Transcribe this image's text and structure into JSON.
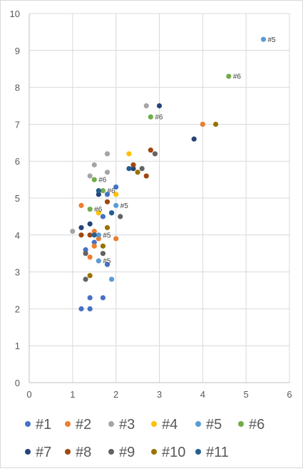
{
  "chart_data": {
    "type": "scatter",
    "xlim": [
      0,
      6
    ],
    "ylim": [
      0,
      10
    ],
    "x_ticks": [
      "0",
      "1",
      "2",
      "3",
      "4",
      "5",
      "6"
    ],
    "y_ticks": [
      "0",
      "1",
      "2",
      "3",
      "4",
      "5",
      "6",
      "7",
      "8",
      "9",
      "10"
    ],
    "grid": true,
    "legend_position": "bottom",
    "series": [
      {
        "name": "#1",
        "color": "#4472c4",
        "points": [
          [
            1.2,
            2.0
          ],
          [
            1.4,
            2.0
          ],
          [
            1.4,
            2.3
          ],
          [
            1.7,
            2.3
          ],
          [
            1.8,
            3.2
          ],
          [
            1.3,
            3.6
          ],
          [
            1.5,
            3.8
          ],
          [
            1.7,
            4.5
          ],
          [
            1.9,
            4.6
          ],
          [
            1.8,
            5.1
          ],
          [
            2.0,
            5.3
          ]
        ]
      },
      {
        "name": "#2",
        "color": "#ed7d31",
        "points": [
          [
            1.2,
            4.8
          ],
          [
            1.5,
            4.1
          ],
          [
            1.4,
            3.4
          ],
          [
            1.5,
            3.7
          ],
          [
            1.6,
            3.9
          ],
          [
            2.0,
            3.9
          ],
          [
            4.0,
            7.0
          ]
        ]
      },
      {
        "name": "#3",
        "color": "#a5a5a5",
        "points": [
          [
            1.0,
            4.1
          ],
          [
            1.4,
            5.6
          ],
          [
            1.5,
            5.9
          ],
          [
            1.8,
            5.7
          ],
          [
            1.8,
            6.2
          ],
          [
            2.7,
            7.5
          ]
        ]
      },
      {
        "name": "#4",
        "color": "#ffc000",
        "points": [
          [
            1.6,
            4.6
          ],
          [
            2.0,
            5.1
          ],
          [
            2.3,
            6.2
          ]
        ]
      },
      {
        "name": "#5",
        "color": "#5b9bd5",
        "points": [
          [
            1.6,
            3.3
          ],
          [
            1.9,
            2.8
          ],
          [
            1.6,
            4.0
          ],
          [
            2.0,
            4.8
          ],
          [
            5.4,
            9.3
          ]
        ],
        "labels": [
          "#5",
          "",
          "#5",
          "#5",
          "#5"
        ]
      },
      {
        "name": "#6",
        "color": "#70ad47",
        "points": [
          [
            1.4,
            4.7
          ],
          [
            1.5,
            5.5
          ],
          [
            1.7,
            5.2
          ],
          [
            2.8,
            7.2
          ],
          [
            4.6,
            8.3
          ]
        ],
        "labels": [
          "#6",
          "#6",
          "#6",
          "#6",
          "#6"
        ]
      },
      {
        "name": "#7",
        "color": "#264478",
        "points": [
          [
            1.2,
            4.2
          ],
          [
            1.4,
            4.3
          ],
          [
            1.6,
            5.1
          ],
          [
            2.4,
            5.8
          ],
          [
            3.0,
            7.5
          ],
          [
            3.8,
            6.6
          ]
        ]
      },
      {
        "name": "#8",
        "color": "#9e480e",
        "points": [
          [
            1.2,
            4.0
          ],
          [
            1.4,
            4.0
          ],
          [
            1.8,
            4.9
          ],
          [
            2.4,
            5.9
          ],
          [
            2.7,
            5.6
          ],
          [
            2.8,
            6.3
          ]
        ]
      },
      {
        "name": "#9",
        "color": "#636363",
        "points": [
          [
            1.3,
            2.8
          ],
          [
            1.3,
            3.5
          ],
          [
            1.7,
            3.5
          ],
          [
            2.1,
            4.5
          ],
          [
            2.6,
            5.8
          ],
          [
            2.9,
            6.2
          ]
        ]
      },
      {
        "name": "#10",
        "color": "#997300",
        "points": [
          [
            1.4,
            2.9
          ],
          [
            1.7,
            3.7
          ],
          [
            1.8,
            4.2
          ],
          [
            2.5,
            5.7
          ],
          [
            4.3,
            7.0
          ]
        ]
      },
      {
        "name": "#11",
        "color": "#255e91",
        "points": [
          [
            1.5,
            4.0
          ],
          [
            1.6,
            5.2
          ],
          [
            1.9,
            4.6
          ],
          [
            2.3,
            5.8
          ]
        ]
      }
    ]
  }
}
